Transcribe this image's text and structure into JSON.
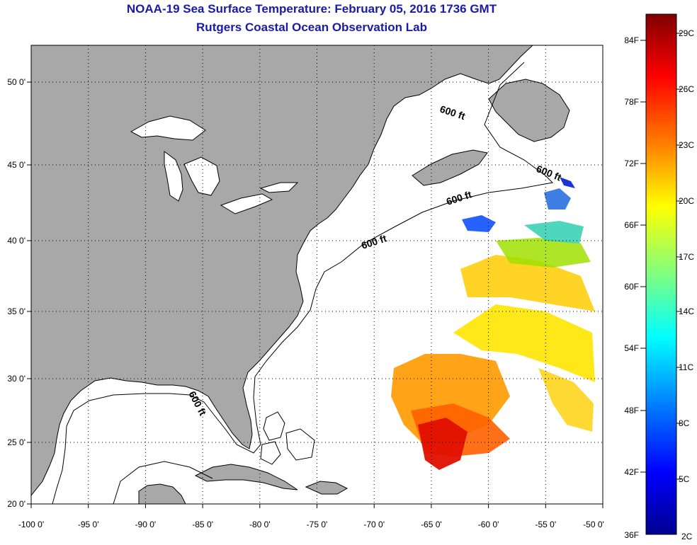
{
  "header": {
    "title": "NOAA-19 Sea Surface Temperature:  February 05, 2016 1736 GMT",
    "subtitle": "Rutgers Coastal Ocean Observation Lab"
  },
  "map": {
    "region": "North-west Atlantic / US East Coast",
    "lon_range": [
      -100,
      -50
    ],
    "lat_range": [
      20,
      52.5
    ],
    "lon_ticks": [
      "-100 0'",
      "-95 0'",
      "-90 0'",
      "-85 0'",
      "-80 0'",
      "-75 0'",
      "-70 0'",
      "-65 0'",
      "-60 0'",
      "-55 0'",
      "-50 0'"
    ],
    "lat_ticks": [
      "50 0'",
      "45 0'",
      "40 0'",
      "35 0'",
      "30 0'",
      "25 0'",
      "20 0'"
    ],
    "contour_label": "600 ft",
    "land_color": "#a8a8a8",
    "ocean_color": "#ffffff"
  },
  "colorbar": {
    "fahrenheit": [
      "84F",
      "78F",
      "72F",
      "66F",
      "60F",
      "54F",
      "48F",
      "42F",
      "36F"
    ],
    "celsius": [
      "29C",
      "26C",
      "23C",
      "20C",
      "17C",
      "14C",
      "11C",
      "8C",
      "5C",
      "2C"
    ],
    "gradient": [
      "#7f0000",
      "#ff0000",
      "#ff7f00",
      "#ffff00",
      "#7fff7f",
      "#00ffff",
      "#007fff",
      "#0000ff",
      "#00008f"
    ]
  }
}
